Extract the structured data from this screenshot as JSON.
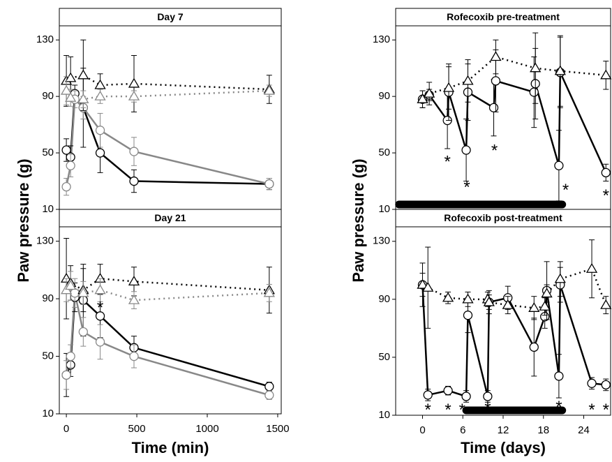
{
  "chart_data": [
    {
      "type": "line",
      "title": "Day 7",
      "ylabel": "Paw pressure (g)",
      "xlim": [
        -50,
        1525
      ],
      "ylim": [
        10,
        140
      ],
      "yticks": [
        10,
        50,
        90,
        130
      ],
      "series": [
        {
          "color": "#000000",
          "marker": "circle",
          "linestyle": "solid",
          "x": [
            0,
            30,
            60,
            120,
            240,
            480,
            1440
          ],
          "values": [
            52,
            47,
            92,
            82,
            50,
            30,
            28
          ],
          "errors": [
            8,
            8,
            6,
            28,
            14,
            8,
            4
          ]
        },
        {
          "color": "#888888",
          "marker": "circle",
          "linestyle": "solid",
          "x": [
            0,
            30,
            60,
            120,
            240,
            480,
            1440
          ],
          "values": [
            26,
            41,
            88,
            82,
            66,
            51,
            28
          ],
          "errors": [
            6,
            8,
            6,
            8,
            12,
            10,
            4
          ]
        },
        {
          "color": "#000000",
          "marker": "triangle",
          "linestyle": "dotted",
          "x": [
            0,
            30,
            120,
            240,
            480,
            1440
          ],
          "values": [
            101,
            103,
            105,
            98,
            99,
            95
          ],
          "errors": [
            18,
            15,
            25,
            8,
            20,
            10
          ]
        },
        {
          "color": "#888888",
          "marker": "triangle",
          "linestyle": "dotted",
          "x": [
            0,
            30,
            120,
            240,
            480,
            1440
          ],
          "values": [
            94,
            89,
            88,
            90,
            90,
            94
          ],
          "errors": [
            10,
            6,
            6,
            5,
            4,
            4
          ]
        }
      ]
    },
    {
      "type": "line",
      "title": "Day 21",
      "xlabel": "Time (min)",
      "xlim": [
        -50,
        1525
      ],
      "ylim": [
        10,
        140
      ],
      "xticks": [
        0,
        500,
        1000,
        1500
      ],
      "yticks": [
        10,
        50,
        90,
        130
      ],
      "series": [
        {
          "color": "#000000",
          "marker": "circle",
          "linestyle": "solid",
          "x": [
            0,
            30,
            60,
            120,
            240,
            480,
            1440
          ],
          "values": [
            37,
            44,
            91,
            89,
            78,
            56,
            29
          ],
          "errors": [
            15,
            8,
            10,
            25,
            15,
            8,
            3
          ]
        },
        {
          "color": "#888888",
          "marker": "circle",
          "linestyle": "solid",
          "x": [
            0,
            30,
            60,
            120,
            240,
            480,
            1440
          ],
          "values": [
            37,
            50,
            94,
            67,
            60,
            50,
            23
          ],
          "errors": [
            10,
            8,
            10,
            10,
            12,
            8,
            3
          ]
        },
        {
          "color": "#000000",
          "marker": "triangle",
          "linestyle": "dotted",
          "x": [
            0,
            30,
            120,
            240,
            480,
            1440
          ],
          "values": [
            104,
            101,
            96,
            104,
            102,
            96
          ],
          "errors": [
            28,
            12,
            15,
            10,
            10,
            16
          ]
        },
        {
          "color": "#888888",
          "marker": "triangle",
          "linestyle": "dotted",
          "x": [
            0,
            30,
            120,
            240,
            480,
            1440
          ],
          "values": [
            96,
            99,
            94,
            96,
            89,
            94
          ],
          "errors": [
            8,
            10,
            8,
            8,
            6,
            6
          ]
        }
      ],
      "annotations": [
        {
          "text": "*",
          "x": 240,
          "y": 85
        }
      ]
    },
    {
      "type": "line",
      "title": "Rofecoxib pre-treatment",
      "ylabel": "Paw pressure (g)",
      "xlim": [
        -4,
        28
      ],
      "ylim": [
        10,
        140
      ],
      "yticks": [
        10,
        50,
        90,
        130
      ],
      "treatment_bar": [
        -3.5,
        20.8
      ],
      "series": [
        {
          "color": "#000000",
          "marker": "circle",
          "linestyle": "solid",
          "x": [
            0,
            1,
            3.7,
            3.9,
            6.5,
            6.75,
            10.6,
            10.9,
            16.6,
            16.8,
            20.3,
            20.5,
            27.3
          ],
          "values": [
            88,
            91,
            73,
            93,
            52,
            93,
            82,
            101,
            93,
            99,
            41,
            107,
            36
          ],
          "errors": [
            6,
            4,
            20,
            20,
            22,
            20,
            20,
            22,
            25,
            25,
            25,
            25,
            6
          ]
        },
        {
          "color": "#000000",
          "marker": "triangle",
          "linestyle": "dotted",
          "x": [
            0,
            1,
            3.9,
            6.75,
            10.9,
            16.8,
            20.5,
            27.3
          ],
          "values": [
            88,
            92,
            96,
            101,
            118,
            110,
            108,
            105
          ],
          "errors": [
            6,
            8,
            15,
            15,
            12,
            25,
            25,
            10
          ]
        }
      ],
      "annotations": [
        {
          "text": "*",
          "x": 3.7,
          "y": 45
        },
        {
          "text": "*",
          "x": 6.6,
          "y": 27
        },
        {
          "text": "*",
          "x": 10.7,
          "y": 53
        },
        {
          "text": "*",
          "x": 21.3,
          "y": 25
        },
        {
          "text": "*",
          "x": 27.3,
          "y": 21
        }
      ]
    },
    {
      "type": "line",
      "title": "Rofecoxib post-treatment",
      "xlabel": "Time (days)",
      "xlim": [
        -4,
        28
      ],
      "ylim": [
        10,
        140
      ],
      "xticks": [
        0,
        6,
        12,
        18,
        24
      ],
      "yticks": [
        10,
        50,
        90,
        130
      ],
      "treatment_bar": [
        6.5,
        20.8
      ],
      "series": [
        {
          "color": "#000000",
          "marker": "circle",
          "linestyle": "solid",
          "x": [
            0,
            0.8,
            3.8,
            6.5,
            6.75,
            9.7,
            9.9,
            12.7,
            16.6,
            18.2,
            18.5,
            20.3,
            20.5,
            25.2,
            27.3
          ],
          "values": [
            100,
            24,
            27,
            23,
            79,
            23,
            88,
            91,
            57,
            78,
            96,
            37,
            100,
            32,
            31
          ],
          "errors": [
            15,
            4,
            3,
            4,
            12,
            4,
            8,
            8,
            20,
            8,
            20,
            15,
            12,
            4,
            4
          ]
        },
        {
          "color": "#000000",
          "marker": "triangle",
          "linestyle": "dotted",
          "x": [
            0,
            0.8,
            3.8,
            6.75,
            9.7,
            9.9,
            12.7,
            16.6,
            18.2,
            18.5,
            20.5,
            25.2,
            27.3
          ],
          "values": [
            100,
            98,
            91,
            90,
            90,
            88,
            86,
            84,
            85,
            94,
            104,
            111,
            86
          ],
          "errors": [
            8,
            28,
            4,
            5,
            5,
            5,
            6,
            8,
            6,
            6,
            12,
            20,
            6
          ]
        }
      ],
      "annotations": [
        {
          "text": "*",
          "x": 0.8,
          "y": 15
        },
        {
          "text": "*",
          "x": 3.8,
          "y": 15
        },
        {
          "text": "*",
          "x": 5.9,
          "y": 15
        },
        {
          "text": "*",
          "x": 9.7,
          "y": 16
        },
        {
          "text": "*",
          "x": 20.3,
          "y": 17
        },
        {
          "text": "*",
          "x": 25.2,
          "y": 15
        },
        {
          "text": "*",
          "x": 27.3,
          "y": 15
        }
      ]
    }
  ]
}
